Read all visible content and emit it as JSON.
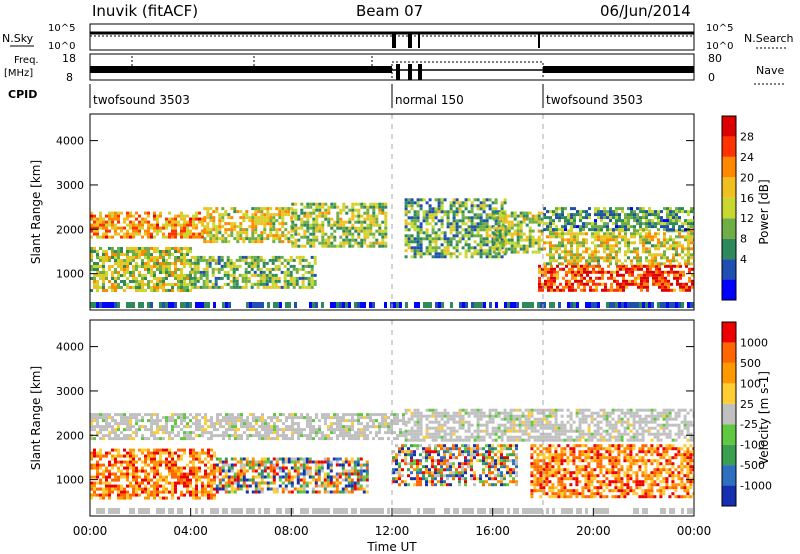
{
  "header": {
    "station": "Inuvik (fitACF)",
    "beam": "Beam 07",
    "date": "06/Jun/2014"
  },
  "top_panels": {
    "nsky_label": "N.Sky",
    "nsearch_label": "N.Search",
    "nsky_ticks": [
      "10^5",
      "10^0"
    ],
    "freq_label": "Freq.",
    "freq_unit": "[MHz]",
    "freq_ticks": [
      "18",
      "8"
    ],
    "nave_label": "Nave",
    "nave_ticks": [
      "80",
      "0"
    ],
    "cpid_label": "CPID",
    "cpid_segments": [
      {
        "label": "twofsound 3503",
        "start_h": 0,
        "end_h": 12
      },
      {
        "label": "normal 150",
        "start_h": 12,
        "end_h": 18
      },
      {
        "label": "twofsound 3503",
        "start_h": 18,
        "end_h": 24
      }
    ]
  },
  "chart_data": [
    {
      "type": "heatmap",
      "name": "power",
      "ylabel": "Slant Range [km]",
      "xlim": [
        0,
        24
      ],
      "ylim": [
        180,
        4600
      ],
      "yticks": [
        "1000",
        "2000",
        "3000",
        "4000"
      ],
      "colorbar_label": "Power [dB]",
      "colorbar_ticks": [
        "28",
        "24",
        "20",
        "16",
        "12",
        "8",
        "4"
      ],
      "colorbar_colors": [
        "#0000ff",
        "#1f4fb0",
        "#2e8a5a",
        "#6fae44",
        "#c8d830",
        "#f0c020",
        "#ff8800",
        "#ff3300",
        "#dd0000"
      ],
      "bands": [
        {
          "h0": 0.0,
          "h1": 4.5,
          "r0": 1800,
          "r1": 2400,
          "level": 0.7
        },
        {
          "h0": 4.5,
          "h1": 8.0,
          "r0": 1700,
          "r1": 2500,
          "level": 0.55
        },
        {
          "h0": 8.0,
          "h1": 11.8,
          "r0": 1600,
          "r1": 2600,
          "level": 0.45
        },
        {
          "h0": 0.0,
          "h1": 4.0,
          "r0": 600,
          "r1": 1600,
          "level": 0.5
        },
        {
          "h0": 4.0,
          "h1": 9.0,
          "r0": 700,
          "r1": 1400,
          "level": 0.4
        },
        {
          "h0": 12.5,
          "h1": 16.5,
          "r0": 1400,
          "r1": 2700,
          "level": 0.35
        },
        {
          "h0": 16.0,
          "h1": 18.0,
          "r0": 1500,
          "r1": 2400,
          "level": 0.45
        },
        {
          "h0": 17.8,
          "h1": 24.0,
          "r0": 600,
          "r1": 1200,
          "level": 0.9
        },
        {
          "h0": 18.0,
          "h1": 24.0,
          "r0": 1200,
          "r1": 2000,
          "level": 0.55
        },
        {
          "h0": 18.0,
          "h1": 24.0,
          "r0": 2000,
          "r1": 2500,
          "level": 0.3
        }
      ]
    },
    {
      "type": "heatmap",
      "name": "velocity",
      "xlabel": "Time UT",
      "ylabel": "Slant Range [km]",
      "xlim": [
        0,
        24
      ],
      "ylim": [
        180,
        4600
      ],
      "xticks": [
        "00:00",
        "04:00",
        "08:00",
        "12:00",
        "16:00",
        "20:00",
        "00:00"
      ],
      "yticks": [
        "1000",
        "2000",
        "3000",
        "4000"
      ],
      "colorbar_label": "Velocity [m s-1]",
      "colorbar_ticks": [
        "1000",
        "500",
        "100",
        "25",
        "-25",
        "-100",
        "-500",
        "-1000"
      ],
      "colorbar_colors": [
        "#1430b0",
        "#2e6fc0",
        "#3aa050",
        "#60c840",
        "#c0c0c0",
        "#ffcc33",
        "#ff9900",
        "#ff6600",
        "#ee0000"
      ],
      "bands": [
        {
          "h0": 0.0,
          "h1": 12.5,
          "r0": 1900,
          "r1": 2500,
          "level": 0.5
        },
        {
          "h0": 12.5,
          "h1": 24.0,
          "r0": 1900,
          "r1": 2600,
          "level": 0.5
        },
        {
          "h0": 0.0,
          "h1": 5.0,
          "r0": 600,
          "r1": 1700,
          "level": 0.85
        },
        {
          "h0": 5.0,
          "h1": 11.0,
          "r0": 700,
          "r1": 1500,
          "level": 0.3
        },
        {
          "h0": 12.0,
          "h1": 17.0,
          "r0": 900,
          "r1": 1800,
          "level": 0.4
        },
        {
          "h0": 17.5,
          "h1": 24.0,
          "r0": 600,
          "r1": 1800,
          "level": 0.85
        }
      ]
    }
  ]
}
